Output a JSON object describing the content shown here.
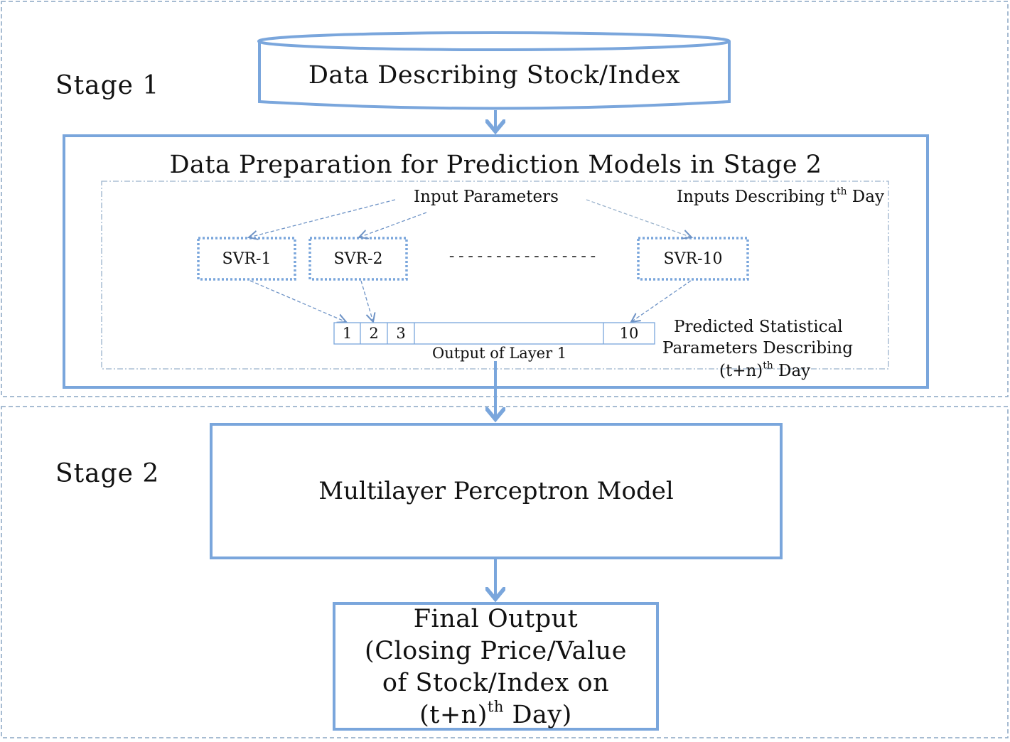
{
  "stage1": {
    "label": "Stage 1",
    "data_source": "Data Describing Stock/Index",
    "prep_title": "Data Preparation for Prediction Models in Stage 2",
    "input_parameters": "Input Parameters",
    "inputs_day": {
      "prefix": "Inputs Describing t",
      "sup": "th",
      "suffix": " Day"
    },
    "svr_models": [
      "SVR-1",
      "SVR-2",
      "SVR-10"
    ],
    "separator_dashes": "----------------",
    "output_cells": [
      "1",
      "2",
      "3",
      "10"
    ],
    "output_layer_label": "Output of Layer 1",
    "predicted": {
      "line1": "Predicted Statistical",
      "line2": "Parameters Describing",
      "line3_prefix": "(t+n)",
      "line3_sup": "th",
      "line3_suffix": " Day"
    }
  },
  "stage2": {
    "label": "Stage 2",
    "model": "Multilayer Perceptron Model",
    "final_output": {
      "line1": "Final Output",
      "line2": "(Closing Price/Value",
      "line3": "of Stock/Index on",
      "line4_prefix": "(t+n)",
      "line4_sup": "th",
      "line4_suffix": " Day)"
    }
  },
  "colors": {
    "accent": "#7aa6dc",
    "stage_border": "#8aa6c4",
    "text": "#111111"
  }
}
